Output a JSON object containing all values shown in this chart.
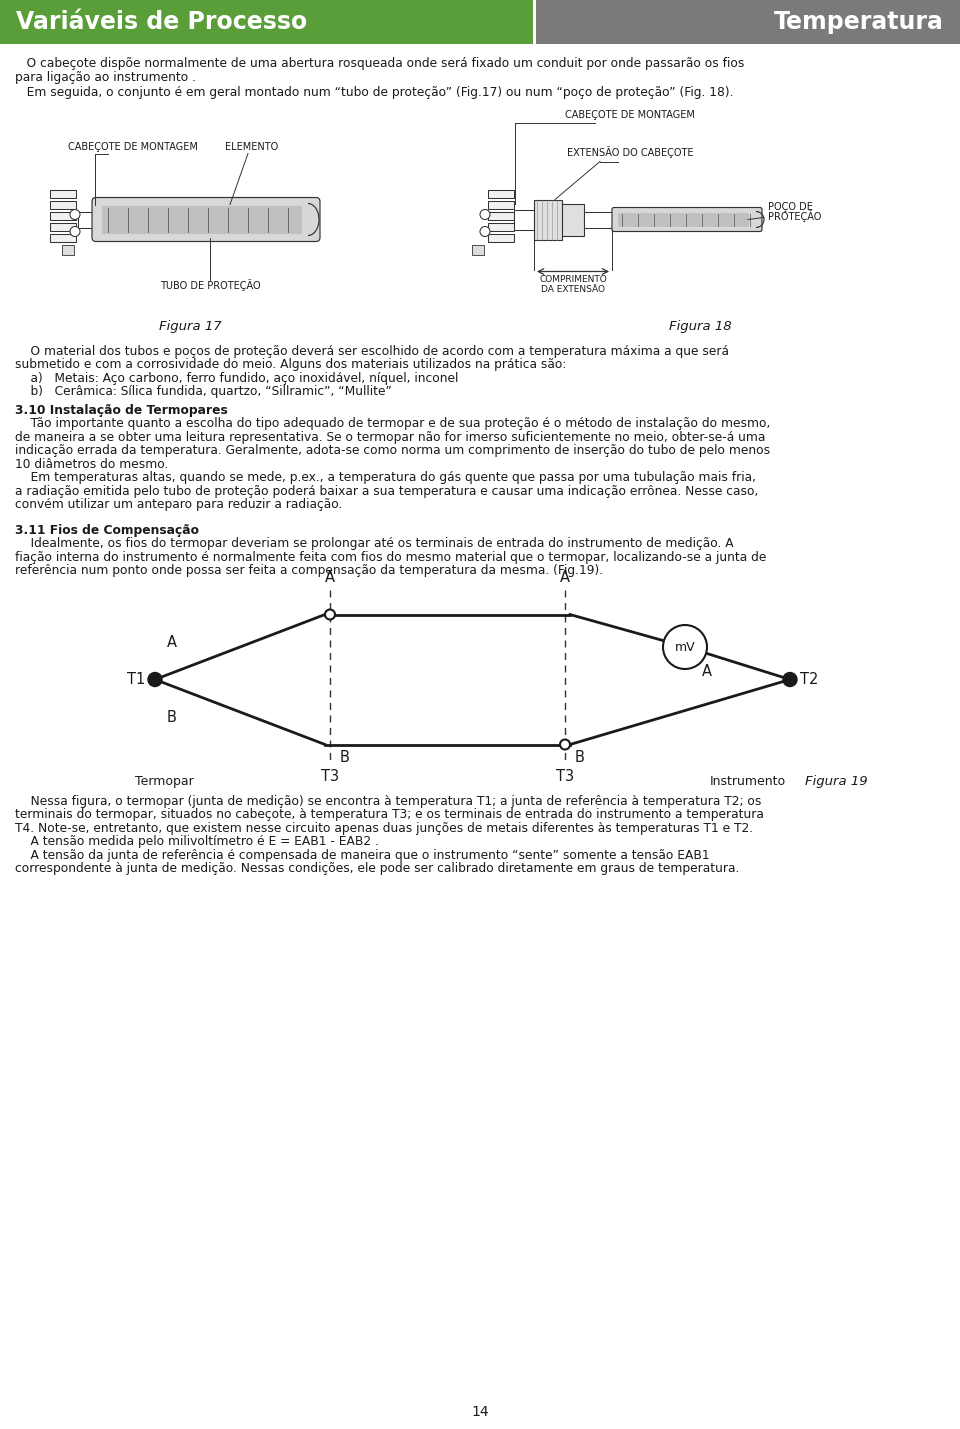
{
  "title_left": "Variáveis de Processo",
  "title_right": "Temperatura",
  "header_left_color": "#5a9e3a",
  "header_right_color": "#7a7a7a",
  "header_text_color": "#ffffff",
  "body_bg_color": "#ffffff",
  "body_text_color": "#1a1a1a",
  "page_number": "14",
  "para1_line1": "   O cabeçote dispõe normalmente de uma abertura rosqueada onde será fixado um conduit por onde passarão os fios",
  "para1_line2": "para ligação ao instrumento .",
  "para2": "   Em seguida, o conjunto é em geral montado num “tubo de proteção” (Fig.17) ou num “poço de proteção” (Fig. 18).",
  "figura17_caption": "Figura 17",
  "figura18_caption": "Figura 18",
  "label_cabecote17": "CABEÇOTE DE MONTAGEM",
  "label_elemento17": "ELEMENTO",
  "label_tubo17": "TUBO DE PROTEÇÃO",
  "label_cabecote18": "CABEÇOTE DE MONTAGEM",
  "label_extensao18": "EXTENSÃO DO CABEÇOTE",
  "label_comprimento18_l1": "COMPRIMENTO",
  "label_comprimento18_l2": "DA EXTENSÃO",
  "label_poco18_l1": "POÇO DE",
  "label_poco18_l2": "PROTEÇÃO",
  "material_line1": "    O material dos tubos e poços de proteção deverá ser escolhido de acordo com a temperatura máxima a que será",
  "material_line2": "submetido e com a corrosividade do meio. Alguns dos materiais utilizados na prática são:",
  "material_line3": "    a)   Metais: Aço carbono, ferro fundido, aço inoxidável, níquel, inconel",
  "material_line4": "    b)   Cerâmica: Sílica fundida, quartzo, “Sillramic”, “Mullite”",
  "section310_title": "3.10 Instalação de Termopares",
  "s310_l1": "    Tão importante quanto a escolha do tipo adequado de termopar e de sua proteção é o método de instalação do mesmo,",
  "s310_l2": "de maneira a se obter uma leitura representativa. Se o termopar não for imerso suficientemente no meio, obter-se-á uma",
  "s310_l3": "indicação errada da temperatura. Geralmente, adota-se como norma um comprimento de inserção do tubo de pelo menos",
  "s310_l4": "10 diâmetros do mesmo.",
  "s310_l5": "    Em temperaturas altas, quando se mede, p.ex., a temperatura do gás quente que passa por uma tubulação mais fria,",
  "s310_l6": "a radiação emitida pelo tubo de proteção poderá baixar a sua temperatura e causar uma indicação errônea. Nesse caso,",
  "s310_l7": "convém utilizar um anteparo para reduzir a radiação.",
  "section311_title": "3.11 Fios de Compensação",
  "s311_l1": "    Idealmente, os fios do termopar deveriam se prolongar até os terminais de entrada do instrumento de medição. A",
  "s311_l2": "fiação interna do instrumento é normalmente feita com fios do mesmo material que o termopar, localizando-se a junta de",
  "s311_l3": "referência num ponto onde possa ser feita a compensação da temperatura da mesma. (Fig.19).",
  "fig19_caption": "Figura 19",
  "label_T1": "T1",
  "label_T2": "T2",
  "label_T3": "T3",
  "label_A": "A",
  "label_B": "B",
  "label_mV": "mV",
  "label_termopar": "Termopar",
  "label_instrumento": "Instrumento",
  "final_l1": "    Nessa figura, o termopar (junta de medição) se encontra à temperatura T1; a junta de referência à temperatura T2; os",
  "final_l2": "terminais do termopar, situados no cabeçote, à temperatura T3; e os terminais de entrada do instrumento a temperatura",
  "final_l3": "T4. Note-se, entretanto, que existem nesse circuito apenas duas junções de metais diferentes às temperaturas T1 e T2.",
  "final_l4": "    A tensão medida pelo milivoltímetro é E = EAB1 - EAB2 .",
  "final_l5": "    A tensão da junta de referência é compensada de maneira que o instrumento “sente” somente a tensão EAB1",
  "final_l6": "correspondente à junta de medição. Nessas condições, ele pode ser calibrado diretamente em graus de temperatura."
}
